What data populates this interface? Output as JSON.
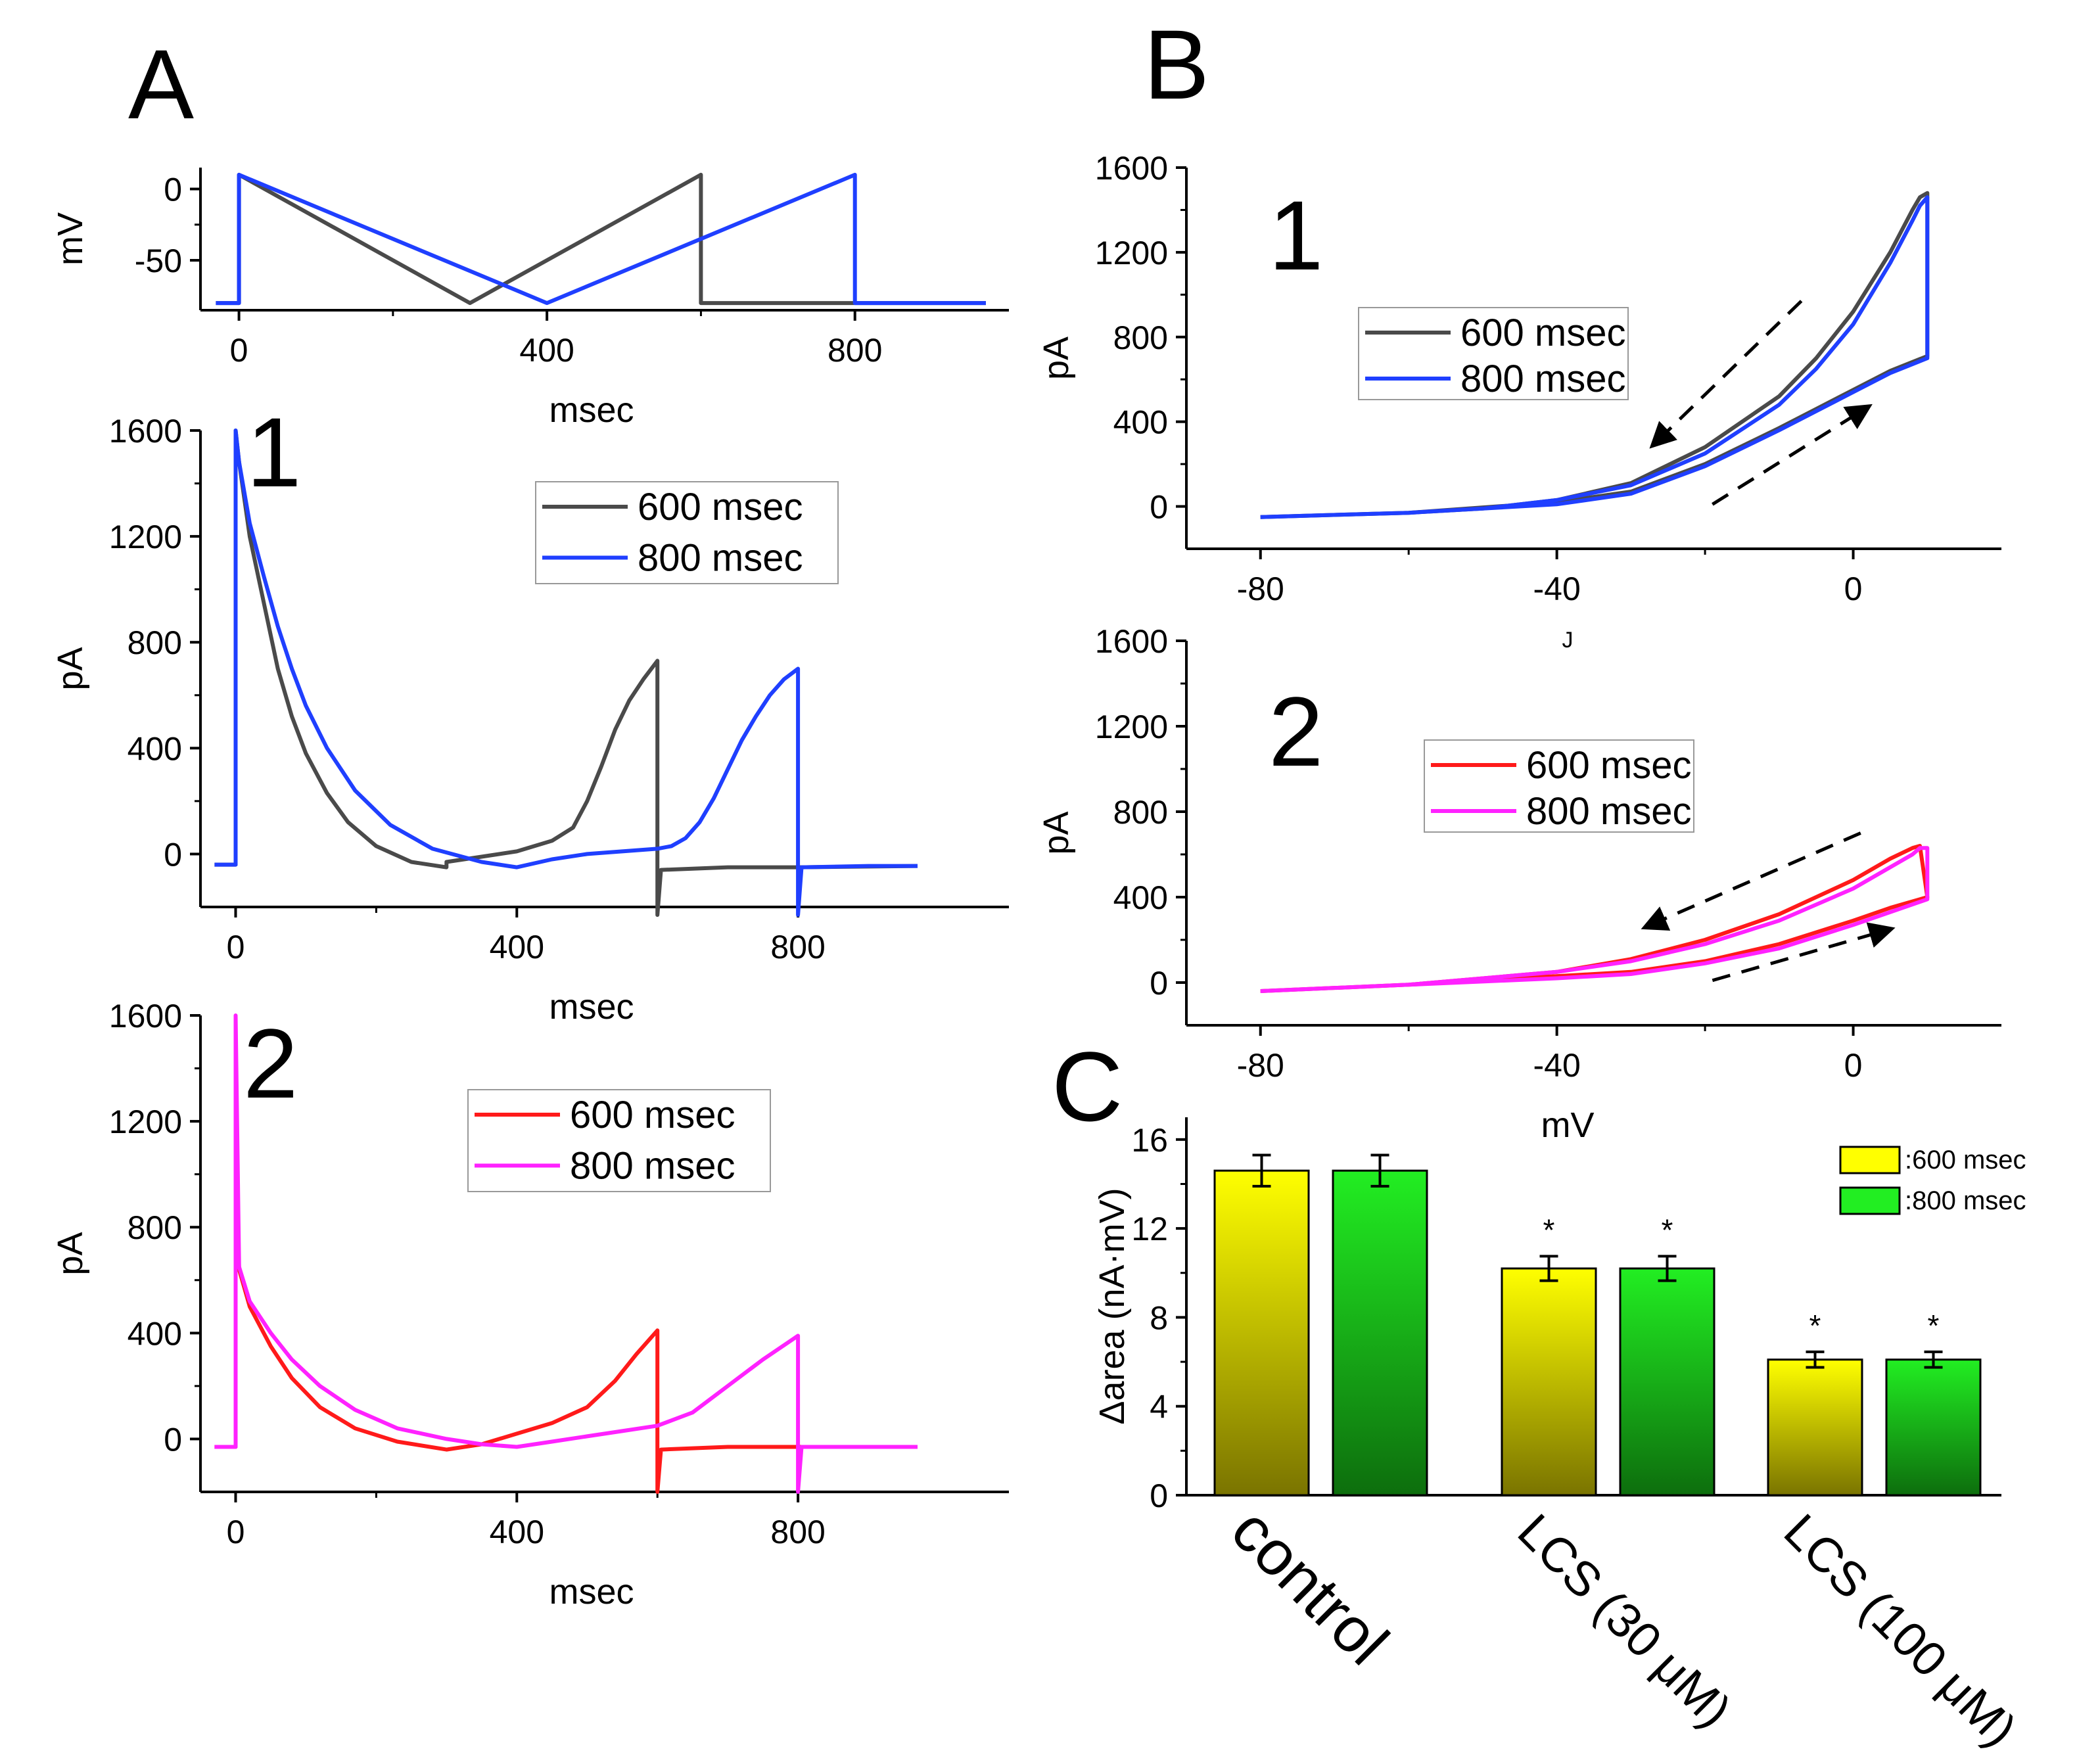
{
  "panels": {
    "A": {
      "label": "A"
    },
    "B": {
      "label": "B"
    },
    "C": {
      "label": "C"
    }
  },
  "colors": {
    "gray": "#4a4a4a",
    "blue": "#1f3fff",
    "red": "#ff1a1a",
    "magenta": "#ff22ff",
    "yellow_top": "#ffff00",
    "yellow_bottom": "#7a7400",
    "green_top": "#22ee22",
    "green_bottom": "#0d6e0d"
  },
  "chart_data": [
    {
      "id": "A-top",
      "type": "line",
      "title": "",
      "xlabel": "msec",
      "ylabel": "mV",
      "xlim": [
        -50,
        1000
      ],
      "ylim": [
        -85,
        15
      ],
      "xticks": [
        "0",
        "400",
        "800"
      ],
      "yticks": [
        "0",
        "-50"
      ],
      "series": [
        {
          "name": "600 msec",
          "color": "gray",
          "x": [
            -30,
            0,
            0,
            300,
            600,
            600,
            970
          ],
          "y": [
            -80,
            -80,
            10,
            -80,
            10,
            -80,
            -80
          ]
        },
        {
          "name": "800 msec",
          "color": "blue",
          "x": [
            -30,
            0,
            0,
            400,
            800,
            800,
            970
          ],
          "y": [
            -80,
            -80,
            10,
            -80,
            10,
            -80,
            -80
          ]
        }
      ]
    },
    {
      "id": "A-1",
      "type": "line",
      "number": "1",
      "xlabel": "msec",
      "ylabel": "pA",
      "xlim": [
        -50,
        1100
      ],
      "ylim": [
        -200,
        1600
      ],
      "xticks": [
        "0",
        "400",
        "800"
      ],
      "yticks": [
        "0",
        "400",
        "800",
        "1200",
        "1600"
      ],
      "legend": [
        "600 msec",
        "800 msec"
      ],
      "series": [
        {
          "name": "600 msec",
          "color": "gray",
          "x": [
            -30,
            0,
            0,
            5,
            20,
            40,
            60,
            80,
            100,
            130,
            160,
            200,
            250,
            300,
            300,
            350,
            400,
            450,
            480,
            500,
            520,
            540,
            560,
            580,
            600,
            600,
            605,
            700,
            800,
            970
          ],
          "y": [
            -40,
            -40,
            1600,
            1480,
            1200,
            950,
            700,
            520,
            380,
            230,
            120,
            30,
            -30,
            -50,
            -30,
            -10,
            10,
            50,
            100,
            200,
            330,
            470,
            580,
            660,
            730,
            -230,
            -60,
            -50,
            -50,
            -45
          ]
        },
        {
          "name": "800 msec",
          "color": "blue",
          "x": [
            -30,
            0,
            0,
            5,
            20,
            40,
            60,
            80,
            100,
            130,
            170,
            220,
            280,
            350,
            400,
            450,
            500,
            550,
            600,
            620,
            640,
            660,
            680,
            700,
            720,
            740,
            760,
            780,
            800,
            800,
            805,
            900,
            970
          ],
          "y": [
            -40,
            -40,
            1600,
            1480,
            1250,
            1050,
            860,
            700,
            560,
            400,
            240,
            110,
            20,
            -30,
            -50,
            -20,
            0,
            10,
            20,
            30,
            60,
            120,
            210,
            320,
            430,
            520,
            600,
            660,
            700,
            -230,
            -50,
            -45,
            -45
          ]
        }
      ]
    },
    {
      "id": "A-2",
      "type": "line",
      "number": "2",
      "xlabel": "msec",
      "ylabel": "pA",
      "xlim": [
        -50,
        1100
      ],
      "ylim": [
        -200,
        1600
      ],
      "xticks": [
        "0",
        "400",
        "800"
      ],
      "yticks": [
        "0",
        "400",
        "800",
        "1200",
        "1600"
      ],
      "legend": [
        "600 msec",
        "800 msec"
      ],
      "series": [
        {
          "name": "600 msec",
          "color": "red",
          "x": [
            -30,
            0,
            0,
            5,
            20,
            50,
            80,
            120,
            170,
            230,
            300,
            350,
            400,
            450,
            500,
            540,
            570,
            600,
            600,
            605,
            700,
            800,
            970
          ],
          "y": [
            -30,
            -30,
            1000,
            640,
            500,
            350,
            230,
            120,
            40,
            -10,
            -40,
            -20,
            20,
            60,
            120,
            220,
            320,
            410,
            -200,
            -40,
            -30,
            -30,
            -30
          ]
        },
        {
          "name": "800 msec",
          "color": "magenta",
          "x": [
            -30,
            0,
            0,
            5,
            20,
            50,
            80,
            120,
            170,
            230,
            300,
            350,
            400,
            450,
            500,
            550,
            600,
            650,
            700,
            750,
            800,
            800,
            805,
            900,
            970
          ],
          "y": [
            -30,
            -30,
            1600,
            650,
            520,
            400,
            300,
            200,
            110,
            40,
            0,
            -20,
            -30,
            -10,
            10,
            30,
            50,
            100,
            200,
            300,
            390,
            -200,
            -30,
            -30,
            -30
          ]
        }
      ]
    },
    {
      "id": "B-1",
      "type": "line",
      "number": "1",
      "xlabel": "J",
      "ylabel": "pA",
      "xlim": [
        -90,
        20
      ],
      "ylim": [
        -200,
        1600
      ],
      "xticks": [
        "-80",
        "-40",
        "0"
      ],
      "yticks": [
        "0",
        "400",
        "800",
        "1200",
        "1600"
      ],
      "legend": [
        "600 msec",
        "800 msec"
      ],
      "series": [
        {
          "name": "600 msec",
          "color": "gray",
          "x": [
            -80,
            -60,
            -50,
            -40,
            -30,
            -20,
            -10,
            -5,
            0,
            5,
            8,
            9,
            10,
            10,
            5,
            0,
            -5,
            -10,
            -20,
            -30,
            -40,
            -60,
            -80
          ],
          "y": [
            -50,
            -30,
            -10,
            30,
            110,
            280,
            520,
            700,
            920,
            1200,
            1400,
            1460,
            1480,
            710,
            640,
            550,
            460,
            370,
            200,
            70,
            20,
            -30,
            -50
          ]
        },
        {
          "name": "800 msec",
          "color": "blue",
          "x": [
            -80,
            -60,
            -50,
            -40,
            -30,
            -20,
            -10,
            -5,
            0,
            5,
            8,
            9,
            10,
            10,
            10,
            5,
            0,
            -5,
            -10,
            -20,
            -30,
            -40,
            -60,
            -80
          ],
          "y": [
            -50,
            -30,
            -10,
            30,
            100,
            250,
            480,
            650,
            860,
            1150,
            1350,
            1420,
            1460,
            1150,
            700,
            630,
            540,
            450,
            360,
            190,
            60,
            10,
            -30,
            -50
          ]
        }
      ]
    },
    {
      "id": "B-2",
      "type": "line",
      "number": "2",
      "xlabel": "mV",
      "ylabel": "pA",
      "xlim": [
        -90,
        20
      ],
      "ylim": [
        -200,
        1600
      ],
      "xticks": [
        "-80",
        "-40",
        "0"
      ],
      "yticks": [
        "0",
        "400",
        "800",
        "1200",
        "1600"
      ],
      "legend": [
        "600 msec",
        "800 msec"
      ],
      "series": [
        {
          "name": "600 msec",
          "color": "red",
          "x": [
            -80,
            -60,
            -40,
            -30,
            -20,
            -10,
            0,
            5,
            8,
            9,
            10,
            5,
            0,
            -10,
            -20,
            -30,
            -40,
            -60,
            -80
          ],
          "y": [
            -40,
            -10,
            50,
            110,
            200,
            320,
            480,
            580,
            630,
            640,
            400,
            350,
            290,
            180,
            100,
            50,
            30,
            -10,
            -40
          ]
        },
        {
          "name": "800 msec",
          "color": "magenta",
          "x": [
            -80,
            -60,
            -40,
            -30,
            -20,
            -10,
            0,
            5,
            8,
            9,
            10,
            10,
            5,
            0,
            -10,
            -20,
            -30,
            -40,
            -60,
            -80
          ],
          "y": [
            -40,
            -10,
            50,
            100,
            180,
            290,
            440,
            540,
            600,
            630,
            630,
            390,
            330,
            270,
            160,
            90,
            40,
            20,
            -10,
            -40
          ]
        }
      ]
    },
    {
      "id": "C",
      "type": "bar",
      "ylabel": "Δarea (nA·mV)",
      "ylim": [
        0,
        17
      ],
      "yticks": [
        "0",
        "4",
        "8",
        "12",
        "16"
      ],
      "categories": [
        "control",
        "LCS (30 μM)",
        "LCS (100 μM)"
      ],
      "legend": [
        ":600 msec",
        ":800 msec"
      ],
      "series": [
        {
          "name": ":600 msec",
          "values": [
            14.6,
            10.2,
            6.1
          ],
          "errors": [
            0.7,
            0.55,
            0.35
          ],
          "significant": [
            false,
            true,
            true
          ]
        },
        {
          "name": ":800 msec",
          "values": [
            14.6,
            10.2,
            6.1
          ],
          "errors": [
            0.7,
            0.55,
            0.35
          ],
          "significant": [
            false,
            true,
            true
          ]
        }
      ],
      "sig_marker": "*"
    }
  ]
}
